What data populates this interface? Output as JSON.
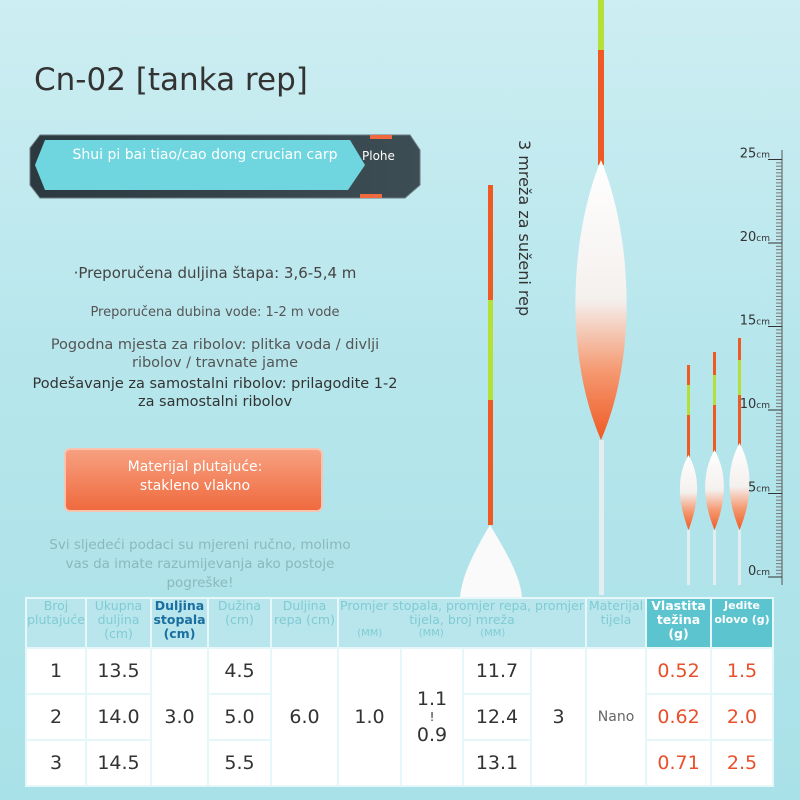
{
  "header": {
    "title": "Cn-02 [tanka rep]"
  },
  "badge": {
    "text": "Shui pi bai tiao/cao dong crucian carp",
    "tag": "Plohe"
  },
  "side_text": "3 mreža za suženi rep",
  "specs": [
    "·Preporučena duljina štapa: 3,6-5,4 m",
    "Preporučena dubina vode: 1-2 m vode",
    "Pogodna mjesta za ribolov: plitka voda / divlji ribolov / travnate jame",
    "Podešavanje za samostalni ribolov: prilagodite 1-2 za samostalni ribolov"
  ],
  "material": "Materijal plutajuće: stakleno vlakno",
  "note": "Svi sljedeći podaci su mjereni ručno, molimo vas da imate razumijevanja ako postoje pogreške!",
  "ruler": {
    "ticks": [
      25,
      20,
      15,
      10,
      5,
      0
    ],
    "unit": "cm"
  },
  "table": {
    "headers": [
      "Broj plutajuće",
      "Ukupna duljina (cm)",
      "Duljina stopala (cm)",
      "Dužina (cm)",
      "Duljina repa (cm)",
      "Promjer stopala, promjer repa, promjer tijela, broj mreža",
      "Materijal tijela",
      "Vlastita težina (g)",
      "Jedite olovo (g)"
    ],
    "sub_header": "(MM)",
    "rows": [
      [
        "1",
        "13.5",
        "4.5",
        "11.7",
        "0.52",
        "1.5"
      ],
      [
        "2",
        "14.0",
        "5.0",
        "12.4",
        "0.62",
        "2.0"
      ],
      [
        "3",
        "14.5",
        "5.5",
        "13.1",
        "0.71",
        "2.5"
      ]
    ],
    "foot_length": "3.0",
    "tail_length": "6.0",
    "foot_diameter": "1.0",
    "tail_diameter": [
      "1.1",
      "!",
      "0.9"
    ],
    "mesh_count": "3",
    "body_material": "Nano"
  }
}
